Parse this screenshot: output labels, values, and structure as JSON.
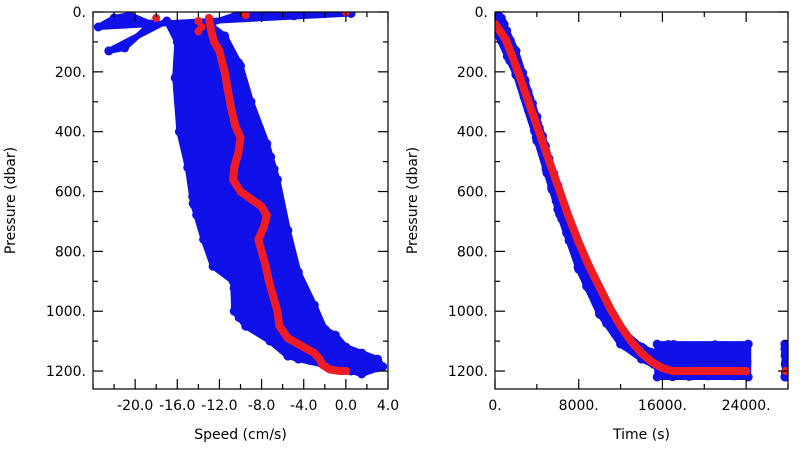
{
  "colors": {
    "scatter": "#1010e8",
    "mean": "#ee1c24",
    "axes": "#000000",
    "background": "#ffffff"
  },
  "chart_data": [
    {
      "type": "scatter",
      "xlabel": "Speed (cm/s)",
      "ylabel": "Pressure (dbar)",
      "xlim": [
        -24.0,
        4.0
      ],
      "ylim": [
        1260,
        0
      ],
      "xticks": [
        {
          "value": -20.0,
          "label": "-20.0"
        },
        {
          "value": -16.0,
          "label": "-16.0"
        },
        {
          "value": -12.0,
          "label": "-12.0"
        },
        {
          "value": -8.0,
          "label": "-8.0"
        },
        {
          "value": -4.0,
          "label": "-4.0"
        },
        {
          "value": 0.0,
          "label": "0.0"
        },
        {
          "value": 4.0,
          "label": "4.0"
        }
      ],
      "yticks": [
        {
          "value": 0,
          "label": "0."
        },
        {
          "value": 200,
          "label": "200."
        },
        {
          "value": 400,
          "label": "400."
        },
        {
          "value": 600,
          "label": "600."
        },
        {
          "value": 800,
          "label": "800."
        },
        {
          "value": 1000,
          "label": "1000."
        },
        {
          "value": 1200,
          "label": "1200."
        }
      ],
      "grid": false,
      "series": [
        {
          "role": "scatter-envelope",
          "points": [
            [
              -23.5,
              50
            ],
            [
              -22.0,
              20
            ],
            [
              -20.5,
              10
            ],
            [
              -18.5,
              40
            ],
            [
              -21.0,
              120
            ],
            [
              -22.5,
              130
            ],
            [
              -17.0,
              30
            ],
            [
              -16.0,
              100
            ],
            [
              -16.2,
              220
            ],
            [
              -15.8,
              400
            ],
            [
              -15.0,
              520
            ],
            [
              -14.5,
              640
            ],
            [
              -13.5,
              760
            ],
            [
              -12.6,
              850
            ],
            [
              -10.7,
              900
            ],
            [
              -10.6,
              1000
            ],
            [
              -9.5,
              1050
            ],
            [
              -7.2,
              1100
            ],
            [
              -5.5,
              1150
            ],
            [
              -4.5,
              1160
            ],
            [
              -2.0,
              1180
            ],
            [
              0.5,
              1200
            ],
            [
              1.5,
              1210
            ],
            [
              3.5,
              1185
            ],
            [
              3.0,
              1160
            ],
            [
              1.5,
              1140
            ],
            [
              0.0,
              1120
            ],
            [
              -1.0,
              1080
            ],
            [
              -2.0,
              1060
            ],
            [
              -3.0,
              980
            ],
            [
              -4.5,
              870
            ],
            [
              -5.5,
              730
            ],
            [
              -6.5,
              560
            ],
            [
              -7.5,
              440
            ],
            [
              -9.0,
              300
            ],
            [
              -10.0,
              180
            ],
            [
              -11.5,
              80
            ],
            [
              -13.0,
              40
            ],
            [
              -10.0,
              5
            ],
            [
              -8.0,
              3
            ],
            [
              -5.0,
              3
            ],
            [
              -2.0,
              5
            ],
            [
              0.5,
              5
            ]
          ]
        },
        {
          "role": "mean-profile",
          "points": [
            [
              -13.0,
              20
            ],
            [
              -12.8,
              60
            ],
            [
              -12.5,
              100
            ],
            [
              -12.0,
              130
            ],
            [
              -11.8,
              160
            ],
            [
              -11.5,
              200
            ],
            [
              -11.2,
              260
            ],
            [
              -10.9,
              320
            ],
            [
              -10.5,
              380
            ],
            [
              -10.0,
              420
            ],
            [
              -10.2,
              470
            ],
            [
              -10.6,
              520
            ],
            [
              -10.7,
              560
            ],
            [
              -10.0,
              600
            ],
            [
              -9.0,
              625
            ],
            [
              -8.0,
              650
            ],
            [
              -7.5,
              680
            ],
            [
              -7.8,
              720
            ],
            [
              -8.3,
              760
            ],
            [
              -8.0,
              800
            ],
            [
              -7.6,
              850
            ],
            [
              -7.3,
              900
            ],
            [
              -6.9,
              950
            ],
            [
              -6.5,
              1000
            ],
            [
              -6.3,
              1050
            ],
            [
              -5.5,
              1090
            ],
            [
              -4.0,
              1120
            ],
            [
              -3.0,
              1140
            ],
            [
              -2.5,
              1160
            ],
            [
              -2.2,
              1180
            ],
            [
              -1.5,
              1195
            ],
            [
              -0.5,
              1200
            ],
            [
              0.0,
              1200
            ]
          ]
        },
        {
          "role": "mean-outliers",
          "points": [
            [
              -18.0,
              20
            ],
            [
              -14.0,
              30
            ],
            [
              -13.7,
              50
            ],
            [
              -14.0,
              65
            ],
            [
              -9.5,
              10
            ],
            [
              0.0,
              0
            ]
          ]
        }
      ]
    },
    {
      "type": "scatter",
      "xlabel": "Time (s)",
      "ylabel": "Pressure (dbar)",
      "xlim": [
        0,
        28000
      ],
      "ylim": [
        1260,
        0
      ],
      "xticks": [
        {
          "value": 0,
          "label": "0."
        },
        {
          "value": 8000,
          "label": "8000."
        },
        {
          "value": 16000,
          "label": "16000."
        },
        {
          "value": 24000,
          "label": "24000."
        }
      ],
      "yticks": [
        {
          "value": 0,
          "label": "0."
        },
        {
          "value": 200,
          "label": "200."
        },
        {
          "value": 400,
          "label": "400."
        },
        {
          "value": 600,
          "label": "600."
        },
        {
          "value": 800,
          "label": "800."
        },
        {
          "value": 1000,
          "label": "1000."
        },
        {
          "value": 1200,
          "label": "1200."
        }
      ],
      "grid": false,
      "series": [
        {
          "role": "scatter-band",
          "points": [
            [
              0,
              0
            ],
            [
              600,
              20
            ],
            [
              2000,
              130
            ],
            [
              4000,
              350
            ],
            [
              6000,
              580
            ],
            [
              8000,
              790
            ],
            [
              10000,
              950
            ],
            [
              12000,
              1060
            ],
            [
              14000,
              1120
            ],
            [
              16000,
              1150
            ],
            [
              17000,
              1160
            ],
            [
              16000,
              1195
            ],
            [
              14000,
              1160
            ],
            [
              12000,
              1110
            ],
            [
              10000,
              1010
            ],
            [
              8000,
              860
            ],
            [
              6000,
              660
            ],
            [
              4000,
              430
            ],
            [
              2000,
              210
            ],
            [
              0,
              60
            ]
          ],
          "plateau": [
            [
              15500,
              1110
            ],
            [
              24200,
              1110
            ],
            [
              24200,
              1220
            ],
            [
              15500,
              1220
            ]
          ],
          "tail": [
            [
              27700,
              1110
            ],
            [
              28000,
              1110
            ],
            [
              28000,
              1220
            ],
            [
              27700,
              1220
            ]
          ]
        },
        {
          "role": "mean-curve",
          "points": [
            [
              0,
              40
            ],
            [
              1000,
              90
            ],
            [
              2000,
              180
            ],
            [
              3000,
              280
            ],
            [
              4000,
              380
            ],
            [
              5000,
              480
            ],
            [
              6000,
              580
            ],
            [
              7000,
              680
            ],
            [
              8000,
              770
            ],
            [
              9000,
              850
            ],
            [
              10000,
              920
            ],
            [
              11000,
              990
            ],
            [
              12000,
              1050
            ],
            [
              13000,
              1100
            ],
            [
              14000,
              1140
            ],
            [
              15000,
              1170
            ],
            [
              16000,
              1190
            ],
            [
              17000,
              1200
            ],
            [
              24000,
              1200
            ]
          ],
          "tail": [
            [
              27800,
              1200
            ],
            [
              28000,
              1200
            ]
          ]
        }
      ]
    }
  ]
}
